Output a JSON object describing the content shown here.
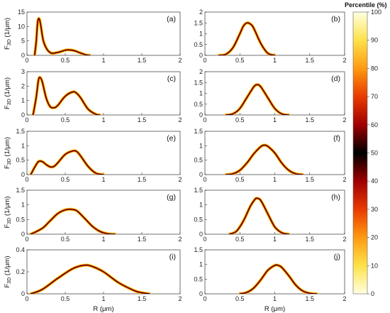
{
  "chart_data": [
    {
      "panel_label": "(a)",
      "type": "line",
      "xlim": [
        0,
        2
      ],
      "ylim": [
        0,
        15
      ],
      "xticks": [
        "0",
        "0.5",
        "1",
        "1.5",
        "2"
      ],
      "yticks": [
        0,
        5,
        10,
        15
      ],
      "ylabel": "F_3D (1/μm)",
      "xlabel": "",
      "x": [
        0.1,
        0.12,
        0.14,
        0.16,
        0.18,
        0.22,
        0.3,
        0.4,
        0.5,
        0.55,
        0.62,
        0.7,
        0.78,
        0.82
      ],
      "y": [
        0,
        4.5,
        11.5,
        12.7,
        10.5,
        4.5,
        1.0,
        1.0,
        1.8,
        1.9,
        1.6,
        0.8,
        0.1,
        0
      ]
    },
    {
      "panel_label": "(b)",
      "type": "line",
      "xlim": [
        0,
        2
      ],
      "ylim": [
        0,
        2
      ],
      "xticks": [
        "0",
        "0.5",
        "1",
        "1.5",
        "2"
      ],
      "yticks": [
        0,
        0.5,
        1,
        1.5,
        2
      ],
      "ylabel": "",
      "xlabel": "",
      "x": [
        0.2,
        0.3,
        0.4,
        0.5,
        0.55,
        0.6,
        0.65,
        0.7,
        0.8,
        0.9,
        1.0
      ],
      "y": [
        0,
        0.05,
        0.35,
        1.0,
        1.35,
        1.5,
        1.45,
        1.25,
        0.55,
        0.1,
        0
      ]
    },
    {
      "panel_label": "(c)",
      "type": "line",
      "xlim": [
        0,
        2
      ],
      "ylim": [
        0,
        3
      ],
      "xticks": [
        "0",
        "0.5",
        "1",
        "1.5",
        "2"
      ],
      "yticks": [
        0,
        1,
        2,
        3
      ],
      "ylabel": "F_3D (1/μm)",
      "xlabel": "",
      "x": [
        0.08,
        0.12,
        0.15,
        0.17,
        0.2,
        0.25,
        0.3,
        0.35,
        0.4,
        0.5,
        0.6,
        0.65,
        0.7,
        0.8,
        0.9,
        0.95
      ],
      "y": [
        0,
        1.2,
        2.4,
        2.6,
        2.3,
        1.2,
        0.6,
        0.5,
        0.65,
        1.3,
        1.6,
        1.5,
        1.2,
        0.4,
        0.05,
        0
      ]
    },
    {
      "panel_label": "(d)",
      "type": "line",
      "xlim": [
        0,
        2
      ],
      "ylim": [
        0,
        2
      ],
      "xticks": [
        "0",
        "0.5",
        "1",
        "1.5",
        "2"
      ],
      "yticks": [
        0,
        0.5,
        1,
        1.5,
        2
      ],
      "ylabel": "",
      "xlabel": "",
      "x": [
        0.3,
        0.4,
        0.5,
        0.6,
        0.7,
        0.75,
        0.8,
        0.9,
        1.0,
        1.1,
        1.2
      ],
      "y": [
        0,
        0.05,
        0.3,
        0.8,
        1.3,
        1.4,
        1.3,
        0.8,
        0.3,
        0.05,
        0
      ]
    },
    {
      "panel_label": "(e)",
      "type": "line",
      "xlim": [
        0,
        2
      ],
      "ylim": [
        0,
        1.5
      ],
      "xticks": [
        "0",
        "0.5",
        "1",
        "1.5",
        "2"
      ],
      "yticks": [
        0,
        0.5,
        1,
        1.5
      ],
      "ylabel": "F_3D (1/μm)",
      "xlabel": "",
      "x": [
        0.05,
        0.1,
        0.15,
        0.2,
        0.25,
        0.3,
        0.35,
        0.4,
        0.5,
        0.6,
        0.65,
        0.7,
        0.8,
        0.9,
        1.0
      ],
      "y": [
        0,
        0.25,
        0.45,
        0.45,
        0.35,
        0.27,
        0.28,
        0.4,
        0.7,
        0.82,
        0.8,
        0.65,
        0.28,
        0.05,
        0
      ]
    },
    {
      "panel_label": "(f)",
      "type": "line",
      "xlim": [
        0,
        2
      ],
      "ylim": [
        0,
        1.5
      ],
      "xticks": [
        "0",
        "0.5",
        "1",
        "1.5",
        "2"
      ],
      "yticks": [
        0,
        0.5,
        1,
        1.5
      ],
      "ylabel": "",
      "xlabel": "",
      "x": [
        0.3,
        0.4,
        0.5,
        0.6,
        0.7,
        0.8,
        0.85,
        0.9,
        1.0,
        1.1,
        1.2,
        1.3,
        1.4
      ],
      "y": [
        0,
        0.03,
        0.15,
        0.4,
        0.72,
        0.97,
        1.02,
        0.98,
        0.75,
        0.4,
        0.15,
        0.03,
        0
      ]
    },
    {
      "panel_label": "(g)",
      "type": "line",
      "xlim": [
        0,
        2
      ],
      "ylim": [
        0,
        1.5
      ],
      "xticks": [
        "0",
        "0.5",
        "1",
        "1.5",
        "2"
      ],
      "yticks": [
        0,
        0.5,
        1,
        1.5
      ],
      "ylabel": "F_3D (1/μm)",
      "xlabel": "",
      "x": [
        0.05,
        0.2,
        0.3,
        0.4,
        0.5,
        0.57,
        0.65,
        0.75,
        0.85,
        0.95,
        1.05,
        1.15
      ],
      "y": [
        0,
        0.2,
        0.45,
        0.7,
        0.83,
        0.85,
        0.8,
        0.55,
        0.28,
        0.1,
        0.02,
        0
      ]
    },
    {
      "panel_label": "(h)",
      "type": "line",
      "xlim": [
        0,
        2
      ],
      "ylim": [
        0,
        1.5
      ],
      "xticks": [
        "0",
        "0.5",
        "1",
        "1.5",
        "2"
      ],
      "yticks": [
        0,
        0.5,
        1,
        1.5
      ],
      "ylabel": "",
      "xlabel": "",
      "x": [
        0.35,
        0.45,
        0.55,
        0.65,
        0.72,
        0.75,
        0.8,
        0.9,
        1.0,
        1.1,
        1.2
      ],
      "y": [
        0,
        0.1,
        0.45,
        0.95,
        1.2,
        1.22,
        1.15,
        0.7,
        0.25,
        0.05,
        0
      ]
    },
    {
      "panel_label": "(i)",
      "type": "line",
      "xlim": [
        0,
        2
      ],
      "ylim": [
        0,
        0.4
      ],
      "xticks": [
        "0",
        "0.5",
        "1",
        "1.5",
        "2"
      ],
      "yticks": [
        0,
        0.2,
        0.4
      ],
      "ylabel": "F_3D (1/μm)",
      "xlabel": "R (μm)",
      "x": [
        0.05,
        0.2,
        0.4,
        0.6,
        0.75,
        0.85,
        1.0,
        1.2,
        1.4,
        1.5,
        1.6
      ],
      "y": [
        0,
        0.04,
        0.14,
        0.23,
        0.26,
        0.25,
        0.2,
        0.1,
        0.03,
        0.01,
        0
      ]
    },
    {
      "panel_label": "(j)",
      "type": "line",
      "xlim": [
        0,
        2
      ],
      "ylim": [
        0,
        1.5
      ],
      "xticks": [
        "0",
        "0.5",
        "1",
        "1.5",
        "2"
      ],
      "yticks": [
        0,
        0.5,
        1,
        1.5
      ],
      "ylabel": "",
      "xlabel": "R (μm)",
      "x": [
        0.5,
        0.6,
        0.7,
        0.8,
        0.9,
        1.0,
        1.05,
        1.1,
        1.2,
        1.3,
        1.4,
        1.5,
        1.6
      ],
      "y": [
        0,
        0.05,
        0.2,
        0.48,
        0.8,
        0.97,
        0.97,
        0.9,
        0.62,
        0.3,
        0.1,
        0.02,
        0
      ]
    }
  ],
  "colorbar": {
    "title": "Percentile (%)",
    "ticks": [
      "0",
      "10",
      "20",
      "30",
      "40",
      "50",
      "60",
      "70",
      "80",
      "90",
      "100"
    ],
    "colors": [
      "#ffffe0",
      "#ffe24a",
      "#ff9a10",
      "#e83a00",
      "#a00000",
      "#000000",
      "#a00000",
      "#e83a00",
      "#ff9a10",
      "#ffe24a",
      "#ffffe0"
    ]
  },
  "style": {
    "median_color": "#000000",
    "band_inner": "#c01000",
    "band_mid": "#f08000",
    "band_outer": "#ffe040"
  }
}
